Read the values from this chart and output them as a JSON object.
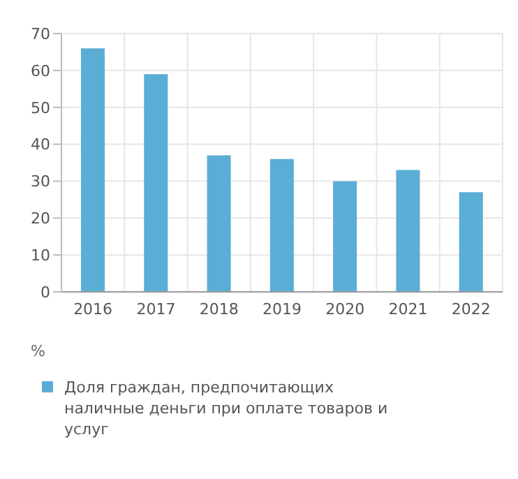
{
  "chart_data": {
    "type": "bar",
    "ylabel": "%",
    "categories": [
      "2016",
      "2017",
      "2018",
      "2019",
      "2020",
      "2021",
      "2022"
    ],
    "series": [
      {
        "name": "Доля граждан, предпочитающих наличные деньги при оплате товаров и услуг",
        "color": "#5aaed6",
        "values": [
          66,
          59,
          37,
          36,
          30,
          33,
          27
        ]
      }
    ],
    "ylim": [
      0,
      70
    ],
    "yticks": [
      0,
      10,
      20,
      30,
      40,
      50,
      60,
      70
    ],
    "grid": true,
    "legend": "bottom"
  }
}
